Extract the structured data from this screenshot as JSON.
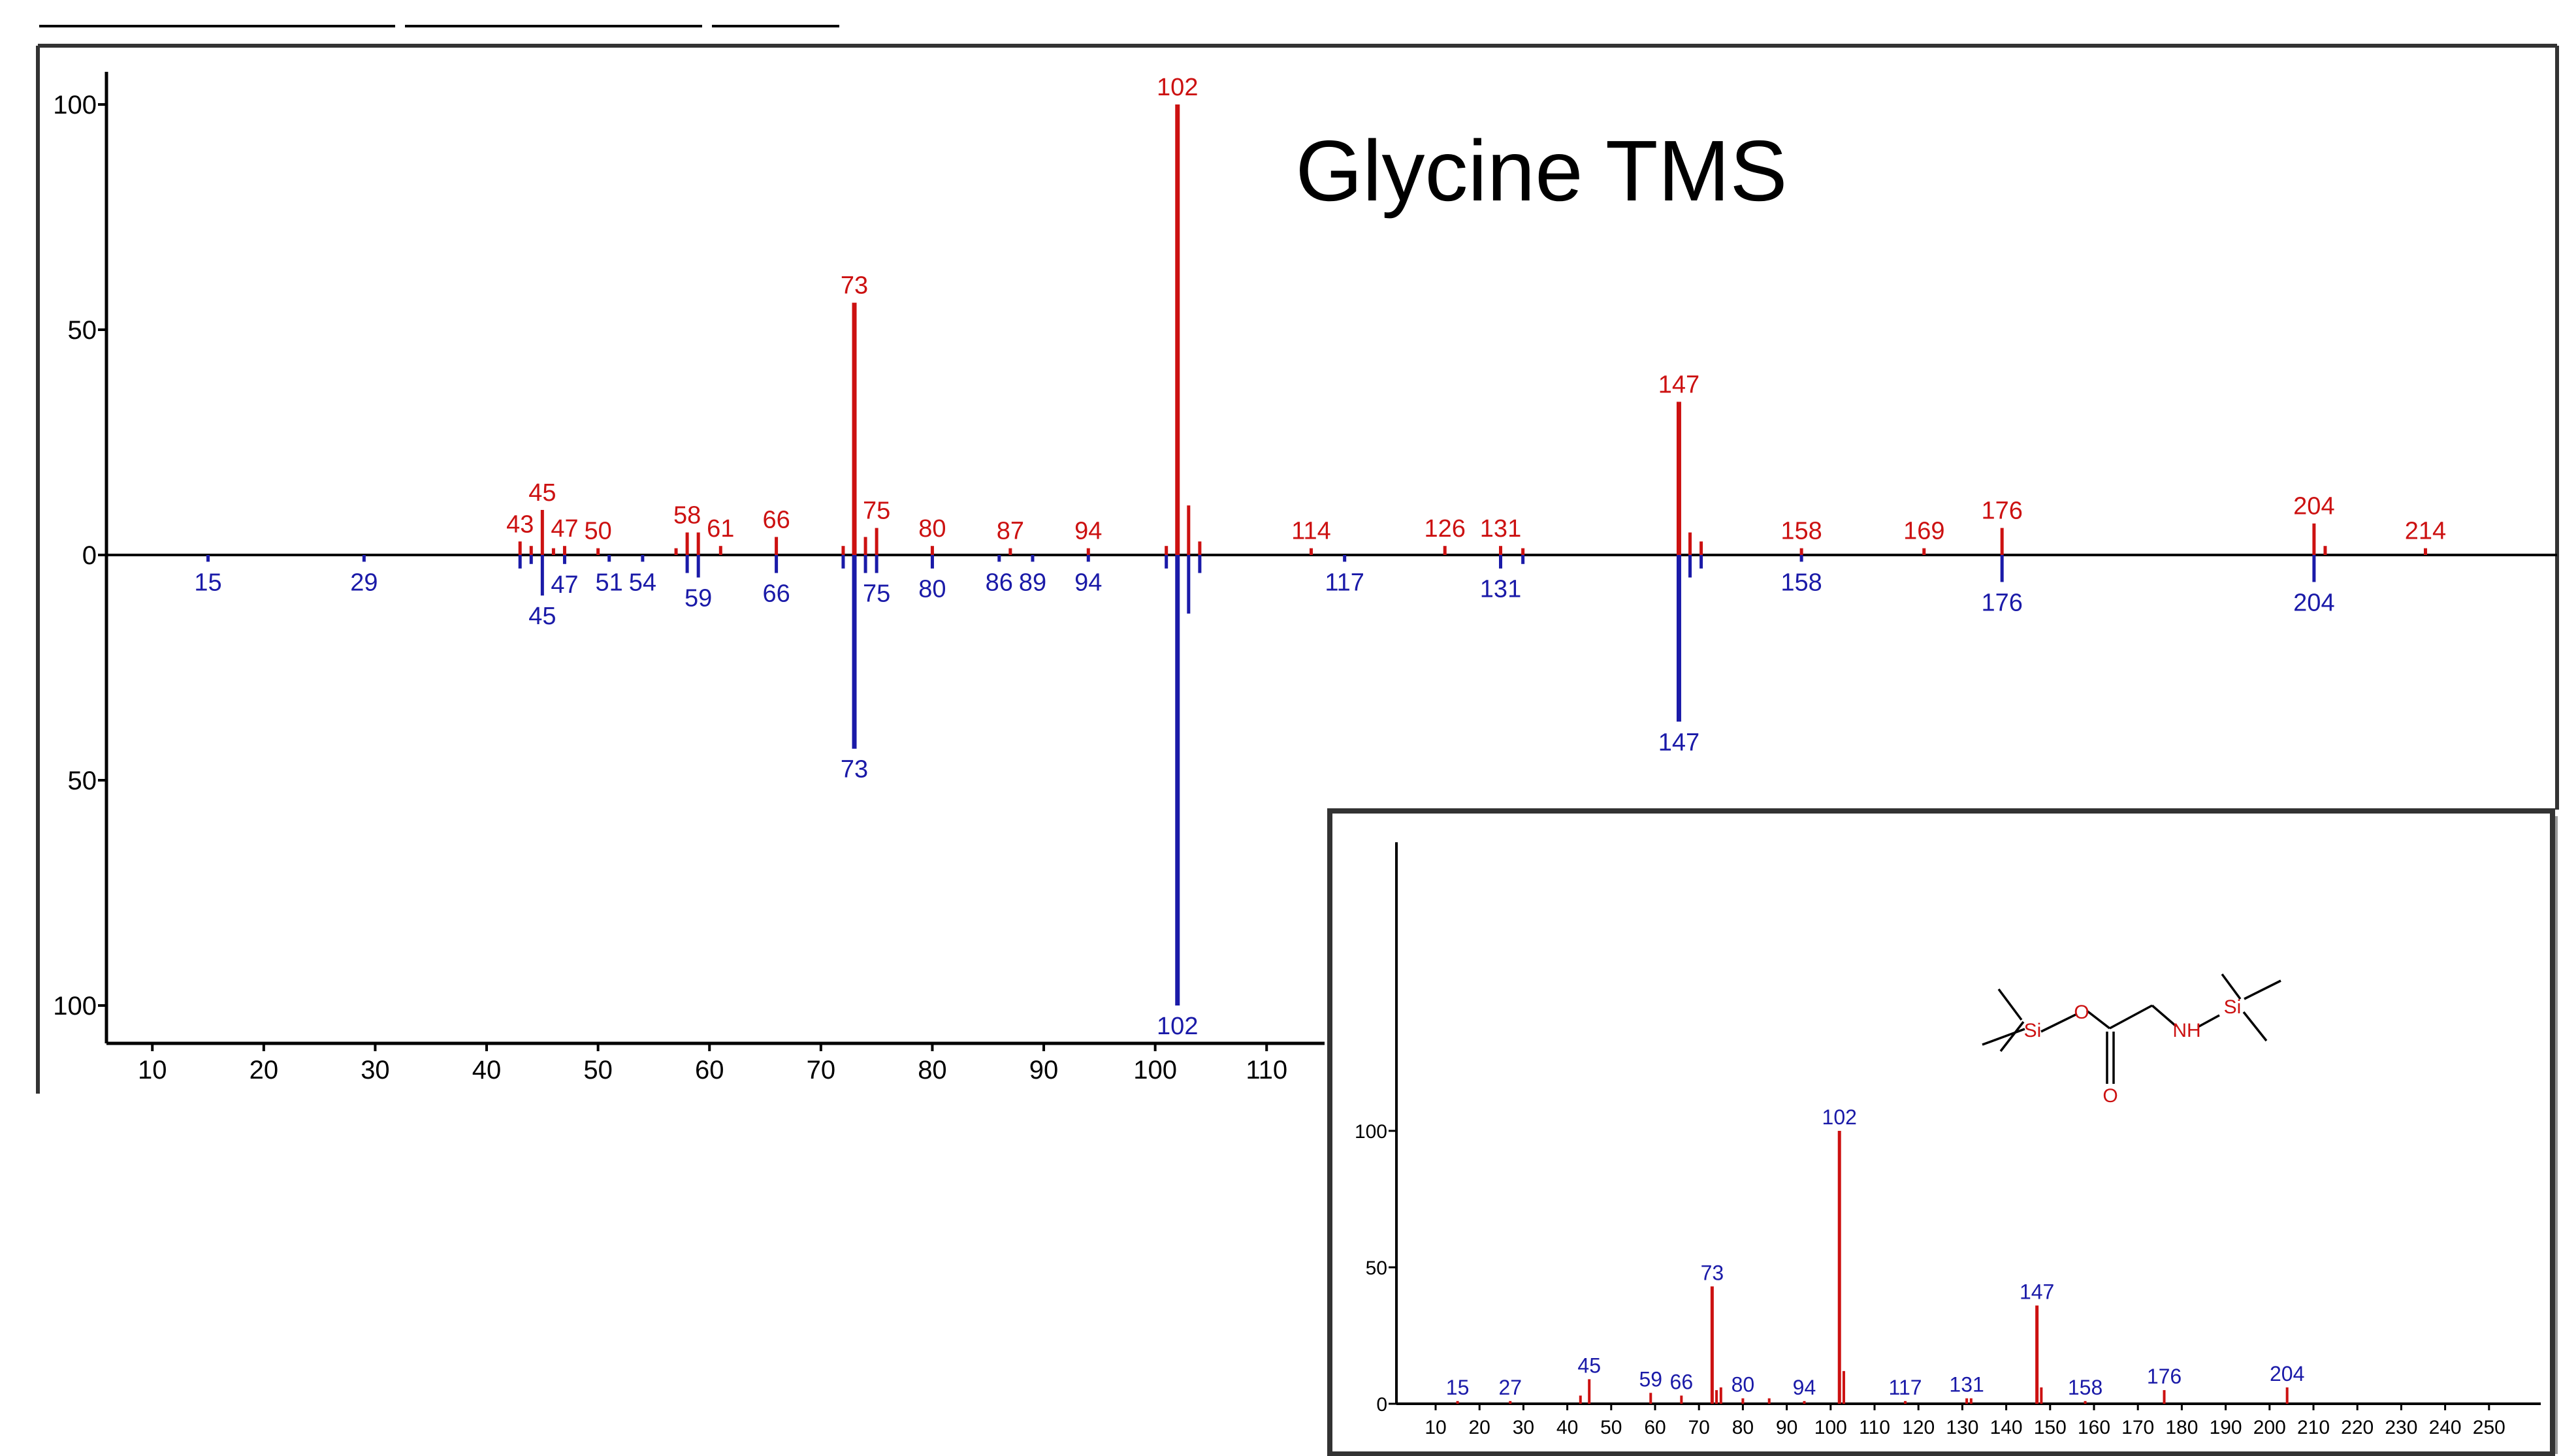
{
  "colors": {
    "library": "#cc1111",
    "sample": "#1a1aa8",
    "axis": "#000000",
    "inset_peak": "#cc1111",
    "inset_label": "#1a1aa8"
  },
  "chart_data": [
    {
      "type": "bar",
      "subtype": "mirror-mass-spectrum",
      "title": "Glycine TMS",
      "xlabel": "",
      "ylabel": "",
      "xlim": [
        6,
        229
      ],
      "ylim": [
        -100,
        100
      ],
      "x_ticks": [
        10,
        20,
        30,
        40,
        50,
        60,
        70,
        80,
        90,
        100,
        110
      ],
      "y_tick_labels": [
        {
          "value": 100,
          "label": "100"
        },
        {
          "value": 50,
          "label": "50"
        },
        {
          "value": 0,
          "label": "0"
        },
        {
          "value": -50,
          "label": "50"
        },
        {
          "value": -100,
          "label": "100"
        }
      ],
      "series": [
        {
          "direction": "up",
          "peaks": [
            {
              "x": 43,
              "y": 3,
              "label": "43"
            },
            {
              "x": 44,
              "y": 2
            },
            {
              "x": 45,
              "y": 10,
              "label": "45"
            },
            {
              "x": 46,
              "y": 1
            },
            {
              "x": 47,
              "y": 2,
              "label": "47"
            },
            {
              "x": 50,
              "y": 1,
              "label": "50"
            },
            {
              "x": 57,
              "y": 1
            },
            {
              "x": 58,
              "y": 5,
              "label": "58"
            },
            {
              "x": 59,
              "y": 5
            },
            {
              "x": 61,
              "y": 2,
              "label": "61"
            },
            {
              "x": 66,
              "y": 4,
              "label": "66"
            },
            {
              "x": 72,
              "y": 2
            },
            {
              "x": 73,
              "y": 56,
              "label": "73"
            },
            {
              "x": 74,
              "y": 4
            },
            {
              "x": 75,
              "y": 6,
              "label": "75"
            },
            {
              "x": 80,
              "y": 2,
              "label": "80"
            },
            {
              "x": 87,
              "y": 1,
              "label": "87"
            },
            {
              "x": 94,
              "y": 1,
              "label": "94"
            },
            {
              "x": 101,
              "y": 2
            },
            {
              "x": 102,
              "y": 100,
              "label": "102"
            },
            {
              "x": 103,
              "y": 11
            },
            {
              "x": 104,
              "y": 3
            },
            {
              "x": 114,
              "y": 1,
              "label": "114"
            },
            {
              "x": 126,
              "y": 2,
              "label": "126"
            },
            {
              "x": 131,
              "y": 2,
              "label": "131"
            },
            {
              "x": 133,
              "y": 1
            },
            {
              "x": 147,
              "y": 34,
              "label": "147"
            },
            {
              "x": 148,
              "y": 5
            },
            {
              "x": 149,
              "y": 3
            },
            {
              "x": 158,
              "y": 1,
              "label": "158"
            },
            {
              "x": 169,
              "y": 1,
              "label": "169"
            },
            {
              "x": 176,
              "y": 6,
              "label": "176"
            },
            {
              "x": 204,
              "y": 7,
              "label": "204"
            },
            {
              "x": 205,
              "y": 2
            },
            {
              "x": 214,
              "y": 1,
              "label": "214"
            }
          ]
        },
        {
          "direction": "down",
          "peaks": [
            {
              "x": 15,
              "y": 1,
              "label": "15"
            },
            {
              "x": 29,
              "y": 1,
              "label": "29"
            },
            {
              "x": 43,
              "y": 3
            },
            {
              "x": 44,
              "y": 2
            },
            {
              "x": 45,
              "y": 9,
              "label": "45"
            },
            {
              "x": 47,
              "y": 2,
              "label": "47"
            },
            {
              "x": 51,
              "y": 1,
              "label": "51"
            },
            {
              "x": 54,
              "y": 1,
              "label": "54"
            },
            {
              "x": 58,
              "y": 4
            },
            {
              "x": 59,
              "y": 5,
              "label": "59"
            },
            {
              "x": 66,
              "y": 4,
              "label": "66"
            },
            {
              "x": 72,
              "y": 3
            },
            {
              "x": 73,
              "y": 43,
              "label": "73"
            },
            {
              "x": 74,
              "y": 4
            },
            {
              "x": 75,
              "y": 4,
              "label": "75"
            },
            {
              "x": 80,
              "y": 3,
              "label": "80"
            },
            {
              "x": 86,
              "y": 1,
              "label": "86"
            },
            {
              "x": 89,
              "y": 1,
              "label": "89"
            },
            {
              "x": 94,
              "y": 1,
              "label": "94"
            },
            {
              "x": 101,
              "y": 3
            },
            {
              "x": 102,
              "y": 100,
              "label": "102"
            },
            {
              "x": 103,
              "y": 13
            },
            {
              "x": 104,
              "y": 4
            },
            {
              "x": 117,
              "y": 1,
              "label": "117"
            },
            {
              "x": 131,
              "y": 3,
              "label": "131"
            },
            {
              "x": 133,
              "y": 2
            },
            {
              "x": 147,
              "y": 37,
              "label": "147"
            },
            {
              "x": 148,
              "y": 5
            },
            {
              "x": 149,
              "y": 3
            },
            {
              "x": 158,
              "y": 1,
              "label": "158"
            },
            {
              "x": 176,
              "y": 6,
              "label": "176"
            },
            {
              "x": 204,
              "y": 6,
              "label": "204"
            }
          ]
        }
      ]
    },
    {
      "type": "bar",
      "subtype": "mass-spectrum",
      "title": "",
      "xlabel": "",
      "ylabel": "",
      "xlim": [
        5,
        260
      ],
      "ylim": [
        0,
        100
      ],
      "x_ticks": [
        10,
        20,
        30,
        40,
        50,
        60,
        70,
        80,
        90,
        100,
        110,
        120,
        130,
        140,
        150,
        160,
        170,
        180,
        190,
        200,
        210,
        220,
        230,
        240,
        250
      ],
      "y_ticks": [
        0,
        50,
        100
      ],
      "peaks": [
        {
          "x": 15,
          "y": 1,
          "label": "15"
        },
        {
          "x": 27,
          "y": 1,
          "label": "27"
        },
        {
          "x": 43,
          "y": 3
        },
        {
          "x": 45,
          "y": 9,
          "label": "45"
        },
        {
          "x": 59,
          "y": 4,
          "label": "59"
        },
        {
          "x": 66,
          "y": 3,
          "label": "66"
        },
        {
          "x": 73,
          "y": 43,
          "label": "73"
        },
        {
          "x": 74,
          "y": 5
        },
        {
          "x": 75,
          "y": 6
        },
        {
          "x": 80,
          "y": 2,
          "label": "80"
        },
        {
          "x": 86,
          "y": 2
        },
        {
          "x": 94,
          "y": 1,
          "label": "94"
        },
        {
          "x": 102,
          "y": 100,
          "label": "102"
        },
        {
          "x": 103,
          "y": 12
        },
        {
          "x": 117,
          "y": 1,
          "label": "117"
        },
        {
          "x": 131,
          "y": 2,
          "label": "131"
        },
        {
          "x": 132,
          "y": 2
        },
        {
          "x": 147,
          "y": 36,
          "label": "147"
        },
        {
          "x": 148,
          "y": 6
        },
        {
          "x": 158,
          "y": 1,
          "label": "158"
        },
        {
          "x": 176,
          "y": 5,
          "label": "176"
        },
        {
          "x": 204,
          "y": 6,
          "label": "204"
        }
      ],
      "structure_atoms": {
        "si": "Si",
        "o": "O",
        "nh": "NH"
      }
    }
  ]
}
